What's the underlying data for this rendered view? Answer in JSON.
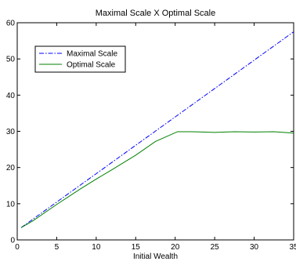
{
  "chart_data": {
    "type": "line",
    "title": "Maximal Scale X Optimal Scale",
    "xlabel": "Initial Wealth",
    "ylabel": "",
    "xlim": [
      0,
      35
    ],
    "ylim": [
      0,
      60
    ],
    "xticks": [
      0,
      5,
      10,
      15,
      20,
      25,
      30,
      35
    ],
    "yticks": [
      0,
      10,
      20,
      30,
      40,
      50,
      60
    ],
    "grid": false,
    "legend_position": "top-left",
    "series": [
      {
        "name": "Maximal Scale",
        "color": "#0000ff",
        "style": "dash-dot",
        "x": [
          0.5,
          35
        ],
        "y": [
          3.4,
          57.5
        ]
      },
      {
        "name": "Optimal Scale",
        "color": "#008000",
        "style": "solid",
        "x": [
          0.5,
          2,
          5,
          8,
          10,
          12,
          15,
          17.5,
          20.3,
          22,
          25,
          27.5,
          30,
          32.5,
          35
        ],
        "y": [
          3.4,
          5.3,
          9.8,
          14.1,
          16.8,
          19.4,
          23.4,
          27.2,
          29.9,
          29.9,
          29.7,
          29.9,
          29.8,
          29.9,
          29.5
        ]
      }
    ]
  }
}
